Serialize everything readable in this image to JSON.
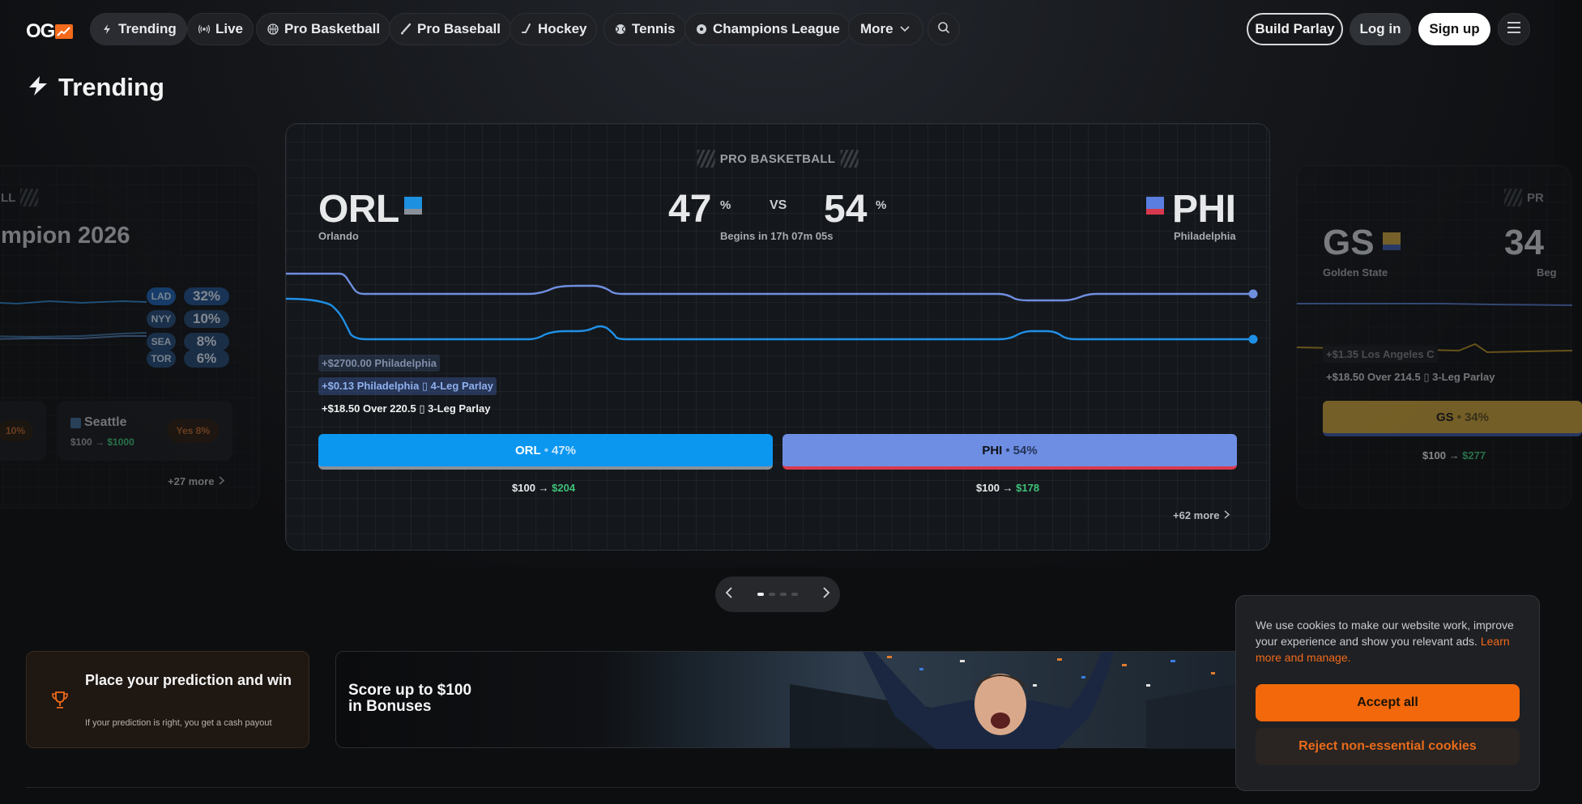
{
  "nav": {
    "logo_text": "OG",
    "items": [
      {
        "label": "Trending",
        "icon": "bolt-icon"
      },
      {
        "label": "Live",
        "icon": "broadcast-icon"
      },
      {
        "label": "Pro Basketball",
        "icon": "basketball-icon"
      },
      {
        "label": "Pro Baseball",
        "icon": "baseball-bat-icon"
      },
      {
        "label": "Hockey",
        "icon": "hockey-stick-icon"
      },
      {
        "label": "Tennis",
        "icon": "tennis-ball-icon"
      },
      {
        "label": "Champions League",
        "icon": "soccer-ball-icon"
      },
      {
        "label": "More",
        "icon": "chevron-down-icon"
      }
    ],
    "build_parlay": "Build Parlay",
    "login": "Log in",
    "signup": "Sign up"
  },
  "section": {
    "title": "Trending"
  },
  "main_card": {
    "league": "PRO BASKETBALL",
    "home": {
      "abbr": "ORL",
      "name": "Orlando",
      "pct": "47",
      "color_top": "#1e90e0",
      "color_bot": "#8a9099"
    },
    "away": {
      "abbr": "PHI",
      "name": "Philadelphia",
      "pct": "54",
      "color_top": "#5a7ee0",
      "color_bot": "#d9394e"
    },
    "pct_symbol": "%",
    "vs": "VS",
    "begins": "Begins in 17h 07m 05s",
    "feed": [
      "+$2700.00 Philadelphia",
      "+$0.13 Philadelphia ▯ 4-Leg Parlay",
      "+$18.50 Over 220.5 ▯ 3-Leg Parlay"
    ],
    "bet_home": {
      "team": "ORL",
      "sep": "•",
      "pct": "47%"
    },
    "bet_away": {
      "team": "PHI",
      "sep": "•",
      "pct": "54%"
    },
    "payout_home": {
      "stake": "$100 → ",
      "win": "$204"
    },
    "payout_away": {
      "stake": "$100 → ",
      "win": "$178"
    },
    "more": "+62 more",
    "line_colors": {
      "home": "#1f8fe6",
      "away": "#6f8ee0"
    }
  },
  "left_card": {
    "title": "mpion 2026",
    "league": "LL",
    "rows": [
      {
        "abbr": "LAD",
        "pct": "32%"
      },
      {
        "abbr": "NYY",
        "pct": "10%"
      },
      {
        "abbr": "SEA",
        "pct": "8%"
      },
      {
        "abbr": "TOR",
        "pct": "6%"
      }
    ],
    "option_left_pct": "10%",
    "option_team": "Seattle",
    "option_yes": "Yes 8%",
    "option_payout": {
      "stake": "$100 → ",
      "win": "$1000"
    },
    "more": "+27 more"
  },
  "right_card": {
    "league": "PR",
    "abbr": "GS",
    "name": "Golden State",
    "pct": "34",
    "begins": "Beg",
    "feed": [
      "+$1.35 Los Angeles C",
      "+$18.50 Over 214.5 ▯ 3-Leg Parlay"
    ],
    "bet": {
      "team": "GS",
      "sep": "•",
      "pct": "34%"
    },
    "payout": {
      "stake": "$100 → ",
      "win": "$277"
    }
  },
  "pager": {
    "count": 4,
    "active": 0
  },
  "promo1": {
    "title": "Place your prediction and win",
    "subtitle": "If your prediction is right, you get a cash payout"
  },
  "promo2": {
    "title_line1": "Score up to $100",
    "title_line2": "in Bonuses"
  },
  "cookie": {
    "text": "We use cookies to make our website work, improve your experience and show you relevant ads. ",
    "link": "Learn more and manage.",
    "accept": "Accept all",
    "reject": "Reject non-essential cookies"
  },
  "colors": {
    "accent": "#f26a1b",
    "win": "#3fc27a",
    "home_blue": "#0b97f0",
    "away_blue": "#6e8ee3"
  }
}
